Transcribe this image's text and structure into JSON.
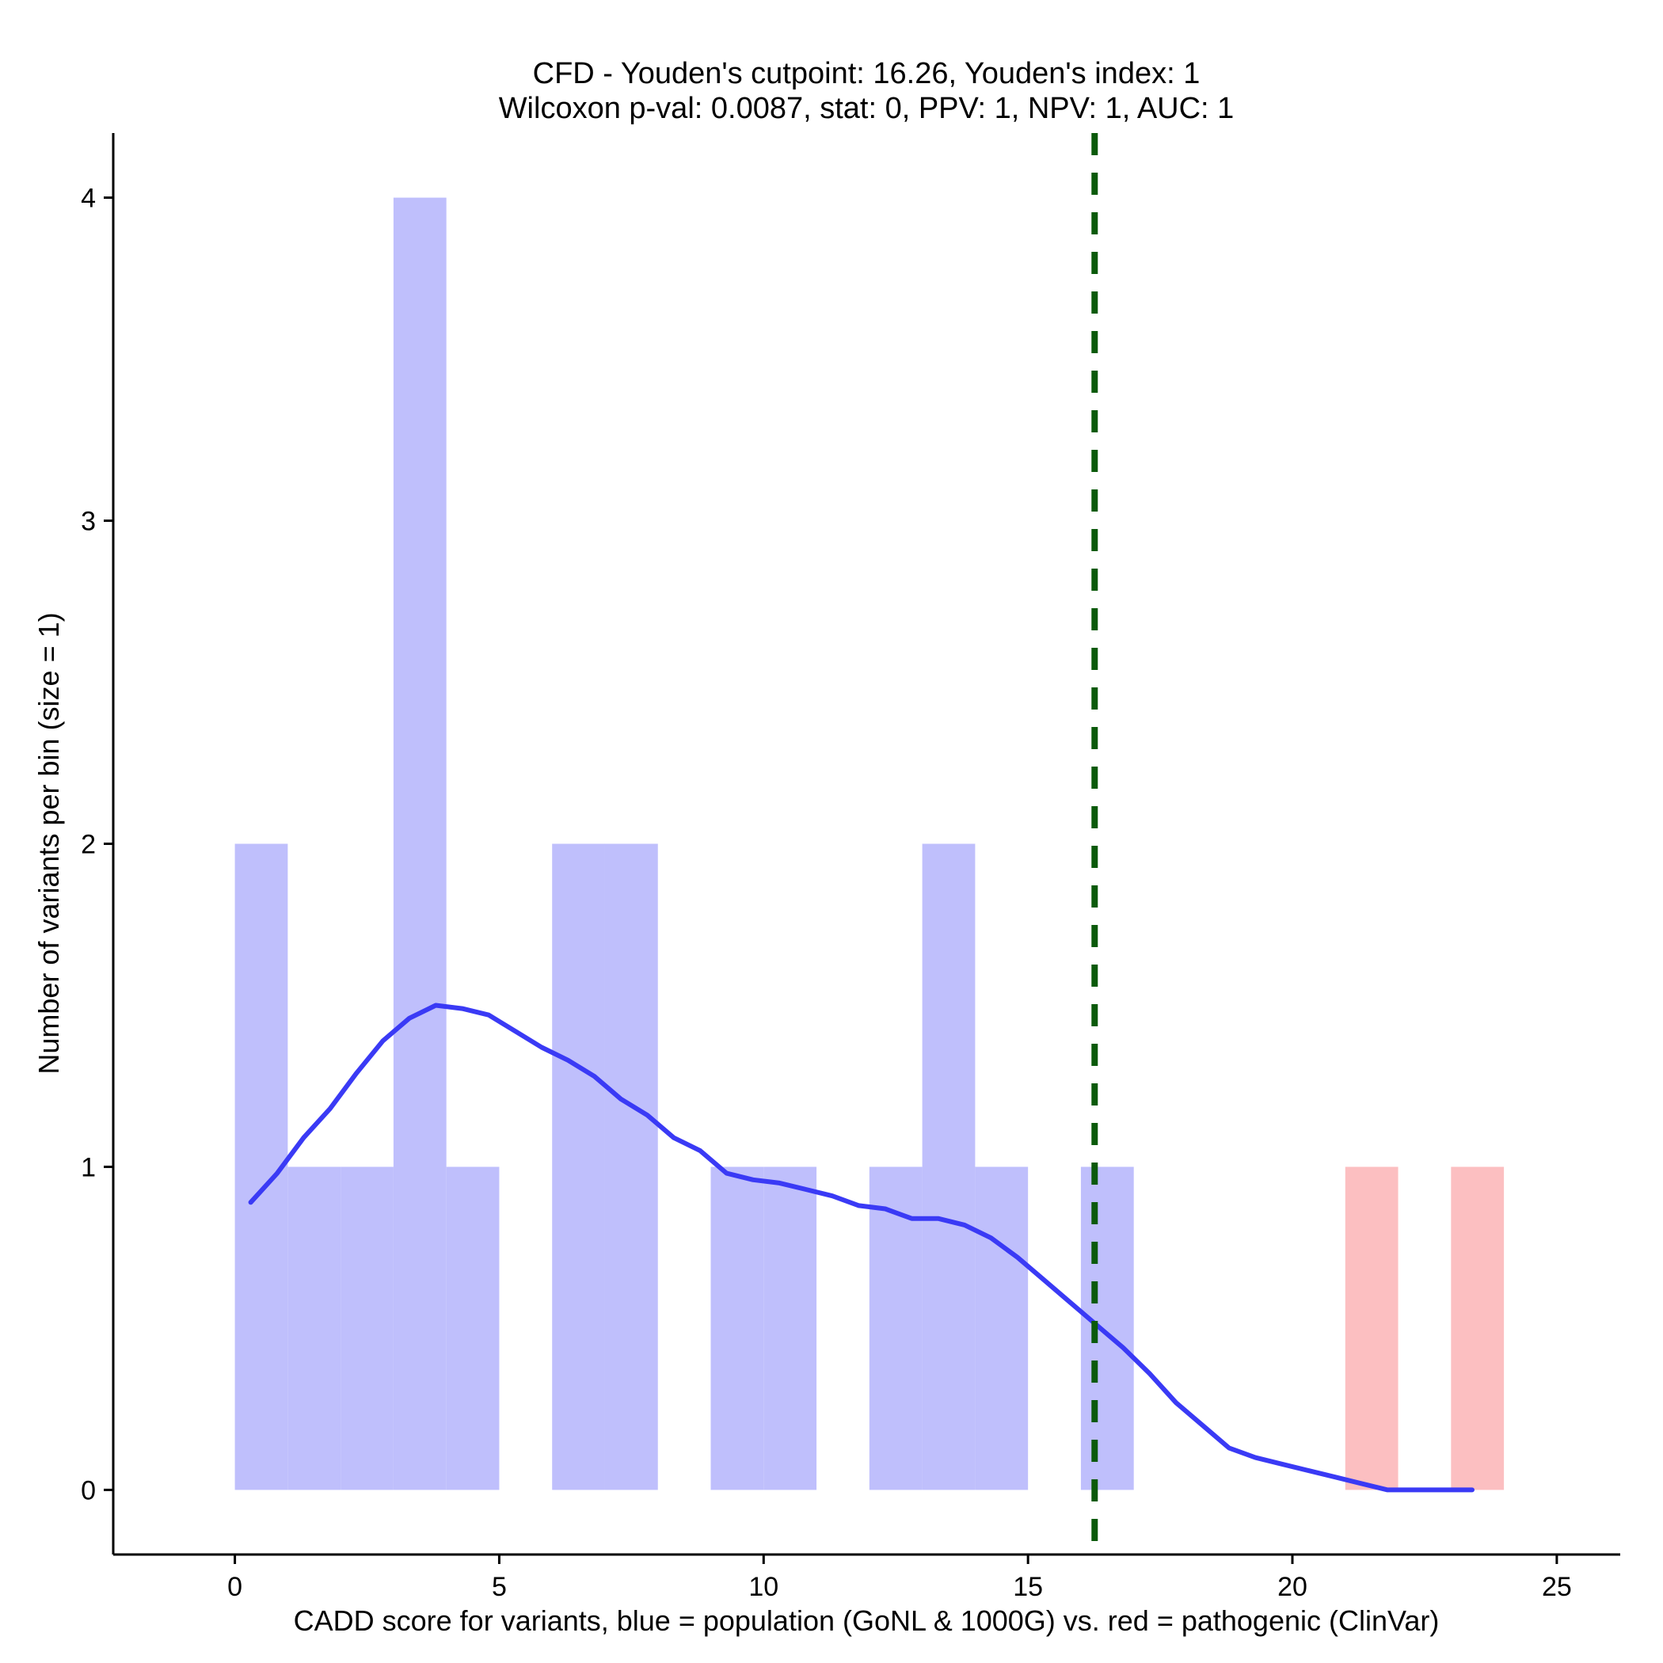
{
  "chart_data": {
    "type": "bar",
    "title": "CFD - Youden's cutpoint: 16.26, Youden's index: 1",
    "subtitle": "Wilcoxon p-val: 0.0087, stat: 0, PPV: 1, NPV: 1, AUC: 1",
    "xlabel": "CADD score for variants, blue = population (GoNL & 1000G) vs. red = pathogenic (ClinVar)",
    "ylabel": "Number of variants per bin (size = 1)",
    "xlim": [
      -2.3,
      26.2
    ],
    "ylim": [
      -0.2,
      4.2
    ],
    "x_ticks": [
      0,
      5,
      10,
      15,
      20,
      25
    ],
    "y_ticks": [
      0,
      1,
      2,
      3,
      4
    ],
    "grid": false,
    "series": [
      {
        "color": "#bfbffc",
        "bins": [
          {
            "x0": 0,
            "x1": 1,
            "count": 2
          },
          {
            "x0": 1,
            "x1": 2,
            "count": 1
          },
          {
            "x0": 2,
            "x1": 3,
            "count": 1
          },
          {
            "x0": 3,
            "x1": 4,
            "count": 4
          },
          {
            "x0": 4,
            "x1": 5,
            "count": 1
          },
          {
            "x0": 6,
            "x1": 7,
            "count": 2
          },
          {
            "x0": 7,
            "x1": 8,
            "count": 2
          },
          {
            "x0": 9,
            "x1": 10,
            "count": 1
          },
          {
            "x0": 10,
            "x1": 11,
            "count": 1
          },
          {
            "x0": 12,
            "x1": 13,
            "count": 1
          },
          {
            "x0": 13,
            "x1": 14,
            "count": 2
          },
          {
            "x0": 14,
            "x1": 15,
            "count": 1
          },
          {
            "x0": 16,
            "x1": 17,
            "count": 1
          }
        ]
      },
      {
        "color": "#fcbfc1",
        "bins": [
          {
            "x0": 21,
            "x1": 22,
            "count": 1
          },
          {
            "x0": 23,
            "x1": 24,
            "count": 1
          }
        ]
      }
    ],
    "density_curve": {
      "color": "#3a3af5",
      "points": [
        [
          0.3,
          0.89
        ],
        [
          0.8,
          0.98
        ],
        [
          1.3,
          1.09
        ],
        [
          1.8,
          1.18
        ],
        [
          2.3,
          1.29
        ],
        [
          2.8,
          1.39
        ],
        [
          3.3,
          1.46
        ],
        [
          3.8,
          1.5
        ],
        [
          4.3,
          1.49
        ],
        [
          4.8,
          1.47
        ],
        [
          5.3,
          1.42
        ],
        [
          5.8,
          1.37
        ],
        [
          6.3,
          1.33
        ],
        [
          6.8,
          1.28
        ],
        [
          7.3,
          1.21
        ],
        [
          7.8,
          1.16
        ],
        [
          8.3,
          1.09
        ],
        [
          8.8,
          1.05
        ],
        [
          9.3,
          0.98
        ],
        [
          9.8,
          0.96
        ],
        [
          10.3,
          0.95
        ],
        [
          10.8,
          0.93
        ],
        [
          11.3,
          0.91
        ],
        [
          11.8,
          0.88
        ],
        [
          12.3,
          0.87
        ],
        [
          12.8,
          0.84
        ],
        [
          13.3,
          0.84
        ],
        [
          13.8,
          0.82
        ],
        [
          14.3,
          0.78
        ],
        [
          14.8,
          0.72
        ],
        [
          15.3,
          0.65
        ],
        [
          15.8,
          0.58
        ],
        [
          16.3,
          0.51
        ],
        [
          16.8,
          0.44
        ],
        [
          17.3,
          0.36
        ],
        [
          17.8,
          0.27
        ],
        [
          18.3,
          0.2
        ],
        [
          18.8,
          0.13
        ],
        [
          19.3,
          0.1
        ],
        [
          19.8,
          0.08
        ],
        [
          20.3,
          0.06
        ],
        [
          20.8,
          0.04
        ],
        [
          21.3,
          0.02
        ],
        [
          21.8,
          0.0
        ],
        [
          22.3,
          0.0
        ],
        [
          22.8,
          0.0
        ],
        [
          23.4,
          0.0
        ]
      ]
    },
    "cutpoint_line": {
      "x": 16.26,
      "color": "#0b5a0b",
      "style": "dashed"
    }
  }
}
